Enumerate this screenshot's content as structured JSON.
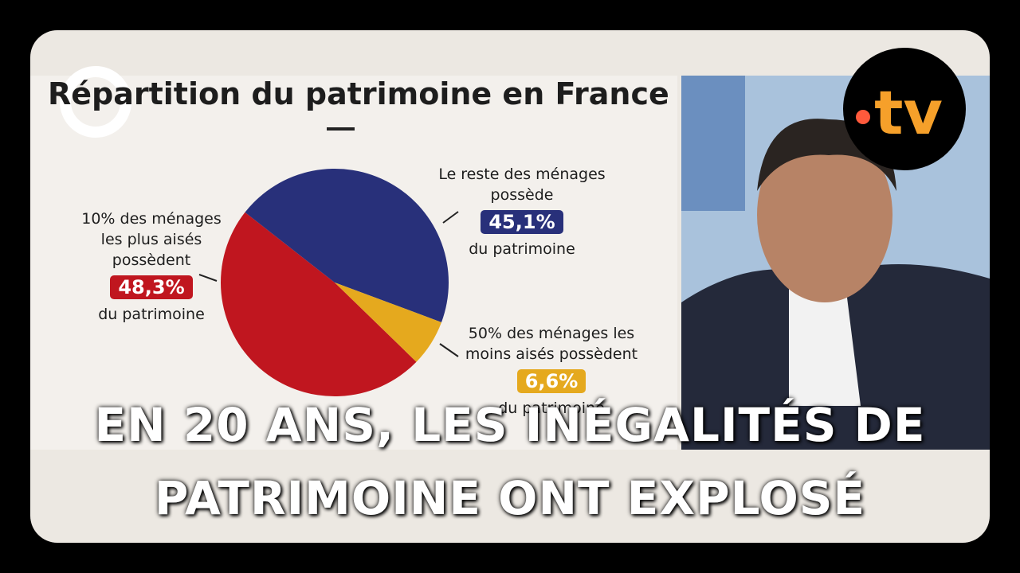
{
  "chart_data": {
    "type": "pie",
    "title": "Répartition du patrimoine en France",
    "categories": [
      "10% des ménages les plus aisés possèdent",
      "Le reste des ménages possède",
      "50% des ménages les moins aisés possèdent"
    ],
    "values": [
      48.3,
      45.1,
      6.6
    ],
    "value_labels": [
      "48,3%",
      "45,1%",
      "6,6%"
    ],
    "colors": [
      "#c0161f",
      "#28307a",
      "#e5a91e"
    ],
    "label_suffix": "du patrimoine"
  },
  "channel_logo": "tv",
  "caption": {
    "lines": [
      "EN 20 ANS, LES INÉGALITÉS DE",
      "PATRIMOINE ONT EXPLOSÉ"
    ]
  }
}
